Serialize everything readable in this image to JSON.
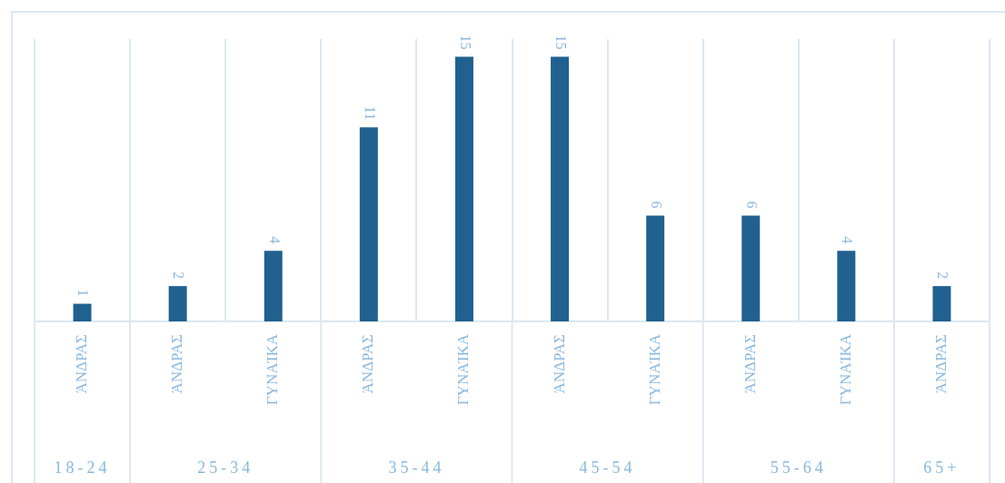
{
  "chart_data": {
    "type": "bar",
    "categories": [
      "ΆΝΔΡΑΣ",
      "ΆΝΔΡΑΣ",
      "ΓΥΝΑΊΚΑ",
      "ΆΝΔΡΑΣ",
      "ΓΥΝΑΊΚΑ",
      "ΆΝΔΡΑΣ",
      "ΓΥΝΑΊΚΑ",
      "ΆΝΔΡΑΣ",
      "ΓΥΝΑΊΚΑ",
      "ΆΝΔΡΑΣ"
    ],
    "values": [
      1,
      2,
      4,
      11,
      15,
      15,
      6,
      6,
      4,
      2
    ],
    "color": "#21618f",
    "data_labels": true,
    "grid": "x",
    "annotations": [
      "18-24",
      "25-34",
      "35-44",
      "45-54",
      "55-64",
      "65+"
    ]
  }
}
